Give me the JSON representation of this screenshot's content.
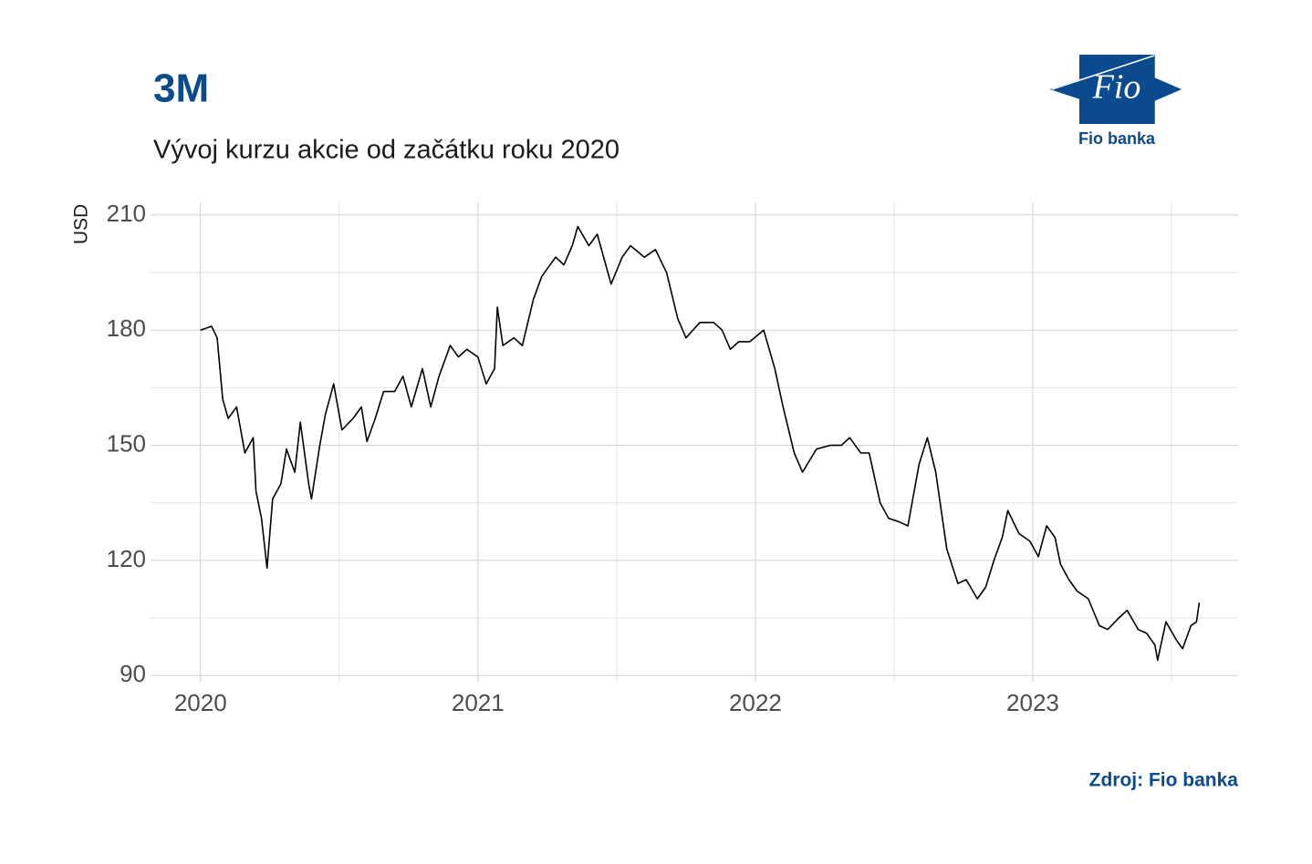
{
  "chart_data": {
    "type": "line",
    "title": "3M",
    "subtitle": "Vývoj kurzu akcie od začátku roku 2020",
    "y_label": "USD",
    "source": "Zdroj: Fio banka",
    "color": "#000000",
    "x": [
      2020.0,
      2020.04,
      2020.06,
      2020.08,
      2020.1,
      2020.13,
      2020.16,
      2020.19,
      2020.2,
      2020.22,
      2020.24,
      2020.26,
      2020.29,
      2020.31,
      2020.34,
      2020.36,
      2020.39,
      2020.4,
      2020.43,
      2020.45,
      2020.48,
      2020.51,
      2020.55,
      2020.58,
      2020.6,
      2020.63,
      2020.66,
      2020.7,
      2020.73,
      2020.76,
      2020.8,
      2020.83,
      2020.86,
      2020.9,
      2020.93,
      2020.96,
      2021.0,
      2021.03,
      2021.06,
      2021.07,
      2021.09,
      2021.13,
      2021.16,
      2021.2,
      2021.23,
      2021.28,
      2021.31,
      2021.34,
      2021.36,
      2021.4,
      2021.43,
      2021.48,
      2021.52,
      2021.55,
      2021.6,
      2021.64,
      2021.68,
      2021.72,
      2021.75,
      2021.8,
      2021.85,
      2021.88,
      2021.91,
      2021.94,
      2021.98,
      2022.03,
      2022.07,
      2022.1,
      2022.14,
      2022.17,
      2022.22,
      2022.27,
      2022.31,
      2022.34,
      2022.38,
      2022.41,
      2022.45,
      2022.48,
      2022.52,
      2022.55,
      2022.59,
      2022.62,
      2022.65,
      2022.69,
      2022.73,
      2022.76,
      2022.8,
      2022.83,
      2022.86,
      2022.89,
      2022.91,
      2022.95,
      2022.99,
      2023.02,
      2023.05,
      2023.08,
      2023.1,
      2023.13,
      2023.16,
      2023.2,
      2023.24,
      2023.27,
      2023.31,
      2023.34,
      2023.38,
      2023.41,
      2023.44,
      2023.45,
      2023.48,
      2023.52,
      2023.54,
      2023.57,
      2023.59,
      2023.6
    ],
    "values": [
      180,
      181,
      178,
      162,
      157,
      160,
      148,
      152,
      138,
      131,
      118,
      136,
      140,
      149,
      143,
      156,
      140,
      136,
      150,
      158,
      166,
      154,
      157,
      160,
      151,
      157,
      164,
      164,
      168,
      160,
      170,
      160,
      168,
      176,
      173,
      175,
      173,
      166,
      170,
      186,
      176,
      178,
      176,
      188,
      194,
      199,
      197,
      202,
      207,
      202,
      205,
      192,
      199,
      202,
      199,
      201,
      195,
      183,
      178,
      182,
      182,
      180,
      175,
      177,
      177,
      180,
      170,
      160,
      148,
      143,
      149,
      150,
      150,
      152,
      148,
      148,
      135,
      131,
      130,
      129,
      145,
      152,
      143,
      123,
      114,
      115,
      110,
      113,
      120,
      126,
      133,
      127,
      125,
      121,
      129,
      126,
      119,
      115,
      112,
      110,
      103,
      102,
      105,
      107,
      102,
      101,
      98,
      94,
      104,
      99,
      97,
      103,
      104,
      109
    ],
    "xlim": [
      2019.82,
      2023.74
    ],
    "xticks": [
      2020,
      2021,
      2022,
      2023
    ],
    "ylim": [
      88.4,
      213.3
    ],
    "yticks": [
      90,
      120,
      150,
      180,
      210
    ],
    "grid": true
  },
  "logo": {
    "mark": "Fio",
    "caption": "Fio banka"
  }
}
